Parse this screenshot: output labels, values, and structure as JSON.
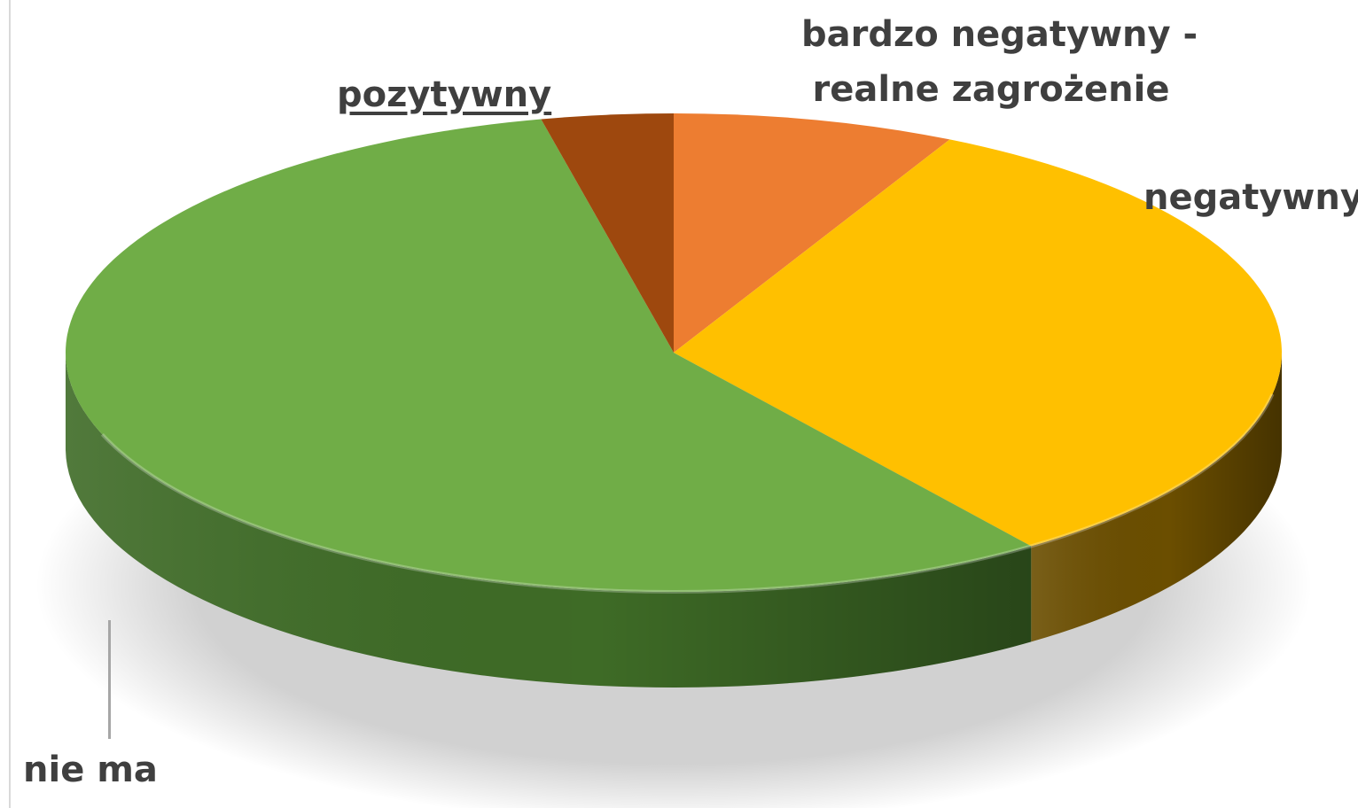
{
  "chart_data": {
    "type": "pie",
    "title": "",
    "categories": [
      "bardzo negatywny - realne zagrożenie",
      "negatywny",
      "nie ma",
      "pozytywny"
    ],
    "values": [
      7.5,
      32.5,
      56.5,
      3.5
    ],
    "colors": [
      "#ED7D31",
      "#FFC000",
      "#70AD47",
      "#9E480E"
    ],
    "side_colors": [
      "#A8551D",
      "#6B4E00",
      "#3E6B26",
      "#6A2F08"
    ],
    "three_d": true,
    "start_angle_deg": 0,
    "labels": [
      {
        "line1": "bardzo negatywny -",
        "line2": "realne zagrożenie"
      },
      {
        "line1": "negatywny",
        "line2": ""
      },
      {
        "line1": "nie ma",
        "line2": ""
      },
      {
        "line1": "pozytywny",
        "line2": ""
      }
    ]
  }
}
